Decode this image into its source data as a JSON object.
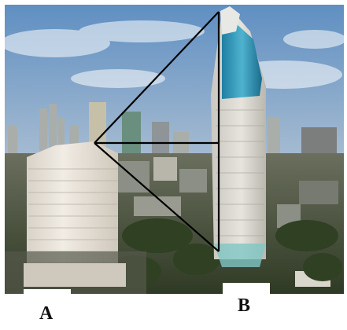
{
  "labels": {
    "building_a": "A",
    "building_b": "B"
  },
  "colors": {
    "sky_top": "#6f9bc7",
    "sky_bottom": "#d9dde0",
    "haze": "#cfd3cf",
    "building_a": "#e9e4dc",
    "building_b_glass": "#2f8fb0",
    "building_b_body": "#d8d6cf",
    "vegetation": "#3b4a2c",
    "lines": "#000000"
  }
}
